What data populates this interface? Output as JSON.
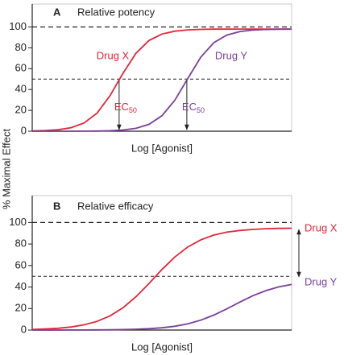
{
  "y_label": "% Maximal Effect",
  "chart_data": [
    {
      "type": "line",
      "panel": "A",
      "title": "Relative potency",
      "x_label": "Log [Agonist]",
      "xlim": [
        0,
        10
      ],
      "ylim": [
        0,
        122
      ],
      "yticks": [
        0,
        20,
        40,
        60,
        80,
        100
      ],
      "reference_lines": [
        100,
        50
      ],
      "x": [
        0,
        0.5,
        1,
        1.5,
        2,
        2.5,
        3,
        3.5,
        4,
        4.5,
        5,
        5.5,
        6,
        6.5,
        7,
        7.5,
        8,
        8.5,
        9,
        9.5,
        10
      ],
      "series": [
        {
          "name": "Drug X",
          "color": "#e3263a",
          "values": [
            0.24,
            0.58,
            1.41,
            3.39,
            7.93,
            17.4,
            34.1,
            55.6,
            74.8,
            87.0,
            93.2,
            96.0,
            97.2,
            97.7,
            97.9,
            97.9,
            98,
            98,
            98,
            98,
            98
          ]
        },
        {
          "name": "Drug Y",
          "color": "#7b3f98",
          "values": [
            0,
            0.01,
            0.01,
            0.03,
            0.08,
            0.19,
            0.47,
            1.15,
            2.78,
            6.59,
            14.8,
            29.8,
            50.7,
            71.1,
            84.9,
            92.2,
            95.6,
            97.0,
            97.6,
            97.8,
            97.9
          ]
        }
      ],
      "ec50": {
        "label": "EC",
        "subscript": "50",
        "x": [
          3.35,
          5.96
        ]
      }
    },
    {
      "type": "line",
      "panel": "B",
      "title": "Relative efficacy",
      "x_label": "Log [Agonist]",
      "xlim": [
        0,
        10
      ],
      "ylim": [
        0,
        125
      ],
      "yticks": [
        0,
        20,
        40,
        60,
        80,
        100
      ],
      "reference_lines": [
        100,
        50
      ],
      "x": [
        0,
        0.5,
        1,
        1.5,
        2,
        2.5,
        3,
        3.5,
        4,
        4.5,
        5,
        5.5,
        6,
        6.5,
        7,
        7.5,
        8,
        8.5,
        9,
        9.5,
        10
      ],
      "series": [
        {
          "name": "Drug X",
          "color": "#e3263a",
          "values": [
            0.56,
            0.97,
            1.67,
            2.85,
            4.83,
            8.08,
            13.2,
            20.7,
            31.0,
            43.3,
            56.3,
            68.0,
            77.3,
            83.9,
            88.3,
            91.0,
            92.6,
            93.6,
            94.2,
            94.5,
            94.7
          ]
        },
        {
          "name": "Drug Y",
          "color": "#7b3f98",
          "values": [
            0.01,
            0.02,
            0.03,
            0.05,
            0.08,
            0.14,
            0.24,
            0.42,
            0.72,
            1.24,
            2.11,
            3.54,
            5.8,
            9.2,
            13.9,
            19.7,
            26.0,
            31.9,
            36.6,
            40.1,
            42.4
          ]
        }
      ]
    }
  ]
}
